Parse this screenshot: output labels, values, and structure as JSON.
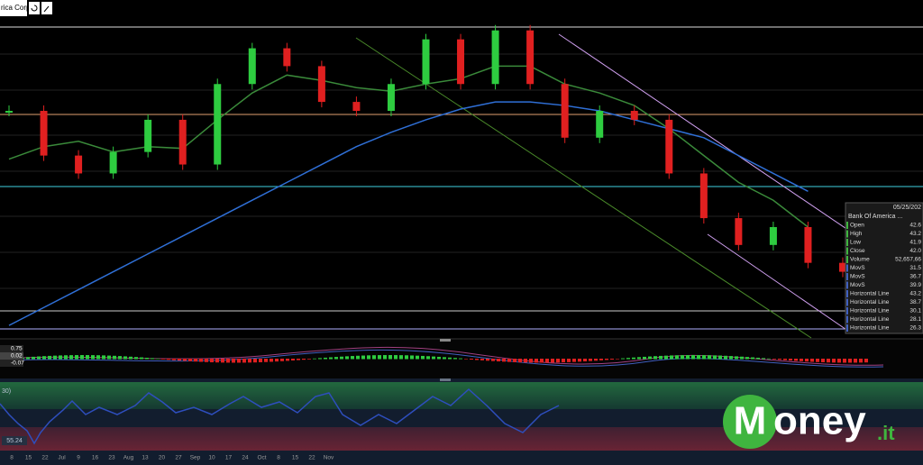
{
  "toolbar": {
    "symbol": "rica Corp"
  },
  "chart_data": {
    "type": "candlestick",
    "ylim": [
      25.8,
      44.7
    ],
    "series": [
      {
        "name": "Close",
        "up_color": "#2ecc40",
        "down_color": "#e02020",
        "values": [
          38.5,
          36.0,
          35.0,
          36.2,
          38.0,
          35.5,
          40.0,
          42.0,
          41.0,
          39.0,
          38.5,
          40.0,
          42.5,
          40.0,
          43.0,
          40.0,
          37.0,
          38.5,
          38.0,
          35.0,
          32.5,
          31.0,
          32.0,
          30.0,
          29.5
        ]
      },
      {
        "name": "MovS",
        "color": "#2f6fd6",
        "values": [
          26.5,
          27.5,
          28.5,
          29.5,
          30.5,
          31.5,
          32.5,
          33.5,
          34.5,
          35.5,
          36.5,
          37.3,
          38.0,
          38.6,
          39.0,
          39.0,
          38.8,
          38.5,
          38.0,
          37.5,
          37.0,
          36.0,
          35.0,
          34.0,
          null
        ]
      },
      {
        "name": "MovS",
        "color": "#3a8a3a",
        "values": [
          35.8,
          36.5,
          36.8,
          36.2,
          36.5,
          36.4,
          38.0,
          39.5,
          40.5,
          40.2,
          39.8,
          39.6,
          40.0,
          40.3,
          41.0,
          41.0,
          40.0,
          39.5,
          38.8,
          37.5,
          36.0,
          34.5,
          33.5,
          32.0,
          null
        ]
      }
    ]
  },
  "info_panel": {
    "date": "05/25/202",
    "name": "Bank Of America ...",
    "rows": [
      [
        "Open",
        "42.6"
      ],
      [
        "High",
        "43.2"
      ],
      [
        "Low",
        "41.9"
      ],
      [
        "Close",
        "42.0"
      ],
      [
        "Volume",
        "52,657,66"
      ],
      [
        "MovS",
        "31.5"
      ],
      [
        "MovS",
        "36.7"
      ],
      [
        "MovS",
        "39.9"
      ],
      [
        "Horizontal Line",
        "43.2"
      ],
      [
        "Horizontal Line",
        "38.7"
      ],
      [
        "Horizontal Line",
        "30.1"
      ],
      [
        "Horizontal Line",
        "28.1"
      ],
      [
        "Horizontal Line",
        "26.3"
      ]
    ]
  },
  "macd_panel": {
    "labels": [
      "0.75",
      "0.02",
      "-0.07"
    ]
  },
  "rsi_panel": {
    "period": "30)",
    "value": "55.24"
  },
  "x_axis": {
    "labels": [
      "8",
      "15",
      "22",
      "Jul",
      "9",
      "16",
      "23",
      "Aug",
      "13",
      "20",
      "27",
      "Sep",
      "10",
      "17",
      "24",
      "Oct",
      "8",
      "15",
      "22",
      "Nov"
    ]
  },
  "brand": {
    "name": "oney",
    "initial": "M",
    "suffix": ".it"
  }
}
